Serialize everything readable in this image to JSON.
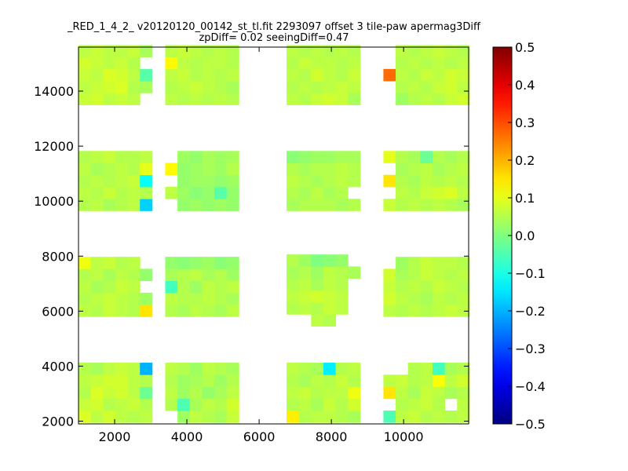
{
  "chart_data": {
    "type": "heatmap",
    "title_line1": "_RED_1_4_2_ v20120120_00142_st_tl.fit 2293097 offset 3 tile-paw apermag3Diff",
    "title_line2": "zpDiff= 0.02 seeingDiff=0.47",
    "xlim": [
      1000,
      11800
    ],
    "ylim": [
      1900,
      15600
    ],
    "x_ticks": [
      2000,
      4000,
      6000,
      8000,
      10000
    ],
    "x_tick_labels": [
      "2000",
      "4000",
      "6000",
      "8000",
      "10000"
    ],
    "y_ticks": [
      2000,
      4000,
      6000,
      8000,
      10000,
      12000,
      14000
    ],
    "y_tick_labels": [
      "2000",
      "4000",
      "6000",
      "8000",
      "10000",
      "12000",
      "14000"
    ],
    "colorbar": {
      "colormap": "jet",
      "vmin": -0.5,
      "vmax": 0.5,
      "ticks": [
        0.5,
        0.4,
        0.3,
        0.2,
        0.1,
        0.0,
        -0.1,
        -0.2,
        -0.3,
        -0.4,
        -0.5
      ],
      "tick_labels": [
        "0.5",
        "0.4",
        "0.3",
        "0.2",
        "0.1",
        "0.0",
        "−0.1",
        "−0.2",
        "−0.3",
        "−0.4",
        "−0.5"
      ]
    },
    "cell_size": [
      340,
      435
    ],
    "tiles": [
      {
        "x0": 1000,
        "y0": 1950,
        "cols": 6,
        "rows": 5,
        "values": [
          [
            0.09,
            0.06,
            0.08,
            0.06,
            0.05,
            0.06
          ],
          [
            0.07,
            0.08,
            0.05,
            0.06,
            0.07,
            0.05
          ],
          [
            0.05,
            0.09,
            0.07,
            0.08,
            0.06,
            -0.02
          ],
          [
            0.06,
            0.07,
            0.08,
            0.08,
            0.06,
            0.05
          ],
          [
            0.05,
            0.04,
            0.06,
            0.07,
            0.06,
            -0.2
          ]
        ]
      },
      {
        "x0": 3400,
        "y0": 1950,
        "cols": 6,
        "rows": 5,
        "values": [
          [
            null,
            0.03,
            0.06,
            0.05,
            0.04,
            0.07
          ],
          [
            0.05,
            -0.05,
            0.04,
            0.06,
            0.05,
            0.08
          ],
          [
            0.06,
            0.03,
            0.05,
            0.02,
            0.04,
            0.06
          ],
          [
            0.05,
            0.03,
            0.04,
            0.05,
            0.03,
            0.05
          ],
          [
            0.06,
            0.05,
            0.03,
            0.06,
            0.05,
            0.04
          ]
        ]
      },
      {
        "x0": 6760,
        "y0": 1950,
        "cols": 6,
        "rows": 5,
        "values": [
          [
            0.14,
            0.05,
            0.06,
            0.06,
            0.05,
            0.04
          ],
          [
            0.05,
            0.06,
            0.04,
            0.07,
            0.05,
            0.08
          ],
          [
            0.06,
            0.07,
            0.05,
            0.06,
            0.06,
            0.11
          ],
          [
            0.05,
            0.04,
            0.06,
            0.05,
            0.07,
            0.05
          ],
          [
            0.06,
            0.05,
            0.04,
            -0.14,
            0.05,
            0.06
          ]
        ]
      },
      {
        "x0": 9440,
        "y0": 1950,
        "cols": 7,
        "rows": 5,
        "values": [
          [
            -0.05,
            0.06,
            0.07,
            0.05,
            0.06,
            0.05,
            0.06
          ],
          [
            null,
            0.05,
            0.06,
            0.07,
            0.05,
            null,
            0.06
          ],
          [
            0.15,
            0.06,
            0.04,
            0.07,
            0.06,
            0.04,
            0.05
          ],
          [
            0.06,
            0.07,
            0.05,
            0.06,
            0.12,
            0.06,
            0.08
          ],
          [
            null,
            null,
            0.05,
            0.06,
            -0.06,
            0.04,
            0.05
          ]
        ]
      },
      {
        "x0": 1000,
        "y0": 5800,
        "cols": 6,
        "rows": 5,
        "values": [
          [
            0.06,
            0.05,
            0.07,
            0.06,
            0.05,
            0.15
          ],
          [
            0.05,
            0.06,
            0.07,
            0.06,
            0.05,
            0.03
          ],
          [
            0.06,
            0.04,
            0.05,
            0.07,
            0.06,
            null
          ],
          [
            0.05,
            0.06,
            0.04,
            0.06,
            0.05,
            0.02
          ],
          [
            0.11,
            0.06,
            0.07,
            0.05,
            0.06,
            null
          ]
        ]
      },
      {
        "x0": 3400,
        "y0": 5800,
        "cols": 6,
        "rows": 5,
        "values": [
          [
            0.05,
            0.04,
            0.06,
            0.05,
            0.04,
            0.06
          ],
          [
            0.06,
            0.05,
            0.05,
            0.06,
            0.05,
            0.04
          ],
          [
            -0.06,
            0.05,
            0.03,
            0.06,
            0.05,
            0.06
          ],
          [
            0.04,
            0.05,
            0.06,
            0.04,
            0.05,
            0.03
          ],
          [
            0.02,
            0.01,
            0.02,
            0.03,
            0.01,
            0.02
          ]
        ]
      },
      {
        "x0": 6760,
        "y0": 5450,
        "cols": 6,
        "rows": 6,
        "values": [
          [
            null,
            null,
            0.06,
            0.05,
            null,
            null
          ],
          [
            0.05,
            0.06,
            0.05,
            0.07,
            0.06,
            null
          ],
          [
            0.06,
            0.07,
            0.08,
            0.07,
            0.06,
            null
          ],
          [
            0.05,
            0.06,
            0.04,
            0.06,
            0.05,
            null
          ],
          [
            0.04,
            0.05,
            0.03,
            0.06,
            0.05,
            0.04
          ],
          [
            0.05,
            0.03,
            0.0,
            0.01,
            0.02,
            null
          ]
        ]
      },
      {
        "x0": 9440,
        "y0": 5800,
        "cols": 7,
        "rows": 5,
        "values": [
          [
            0.06,
            0.05,
            0.06,
            0.05,
            0.06,
            0.07,
            0.06
          ],
          [
            0.08,
            0.06,
            0.05,
            0.04,
            0.06,
            0.05,
            0.06
          ],
          [
            0.07,
            0.05,
            0.06,
            0.05,
            0.07,
            0.06,
            0.05
          ],
          [
            0.08,
            0.04,
            0.05,
            0.07,
            0.06,
            0.05,
            0.06
          ],
          [
            null,
            0.03,
            0.05,
            0.07,
            0.06,
            0.06,
            0.05
          ]
        ]
      },
      {
        "x0": 1000,
        "y0": 9650,
        "cols": 6,
        "rows": 5,
        "values": [
          [
            0.05,
            0.06,
            0.04,
            0.05,
            0.06,
            -0.17
          ],
          [
            0.06,
            0.05,
            0.07,
            0.05,
            0.06,
            0.05
          ],
          [
            0.05,
            0.06,
            0.05,
            0.06,
            0.07,
            -0.12
          ],
          [
            0.06,
            0.04,
            0.05,
            0.06,
            0.05,
            0.1
          ],
          [
            0.05,
            0.06,
            0.07,
            0.05,
            0.05,
            0.06
          ]
        ]
      },
      {
        "x0": 3400,
        "y0": 9650,
        "cols": 6,
        "rows": 5,
        "values": [
          [
            null,
            0.02,
            0.03,
            0.02,
            0.03,
            0.02
          ],
          [
            0.06,
            0.03,
            0.01,
            0.02,
            -0.04,
            0.02
          ],
          [
            null,
            0.02,
            0.03,
            0.03,
            0.02,
            0.03
          ],
          [
            0.13,
            0.02,
            0.03,
            0.04,
            0.03,
            0.05
          ],
          [
            null,
            0.03,
            0.02,
            0.04,
            0.03,
            0.04
          ]
        ]
      },
      {
        "x0": 6760,
        "y0": 9650,
        "cols": 6,
        "rows": 5,
        "values": [
          [
            0.04,
            0.05,
            0.05,
            0.05,
            0.04,
            0.05
          ],
          [
            0.05,
            0.04,
            0.06,
            0.04,
            0.05,
            null
          ],
          [
            0.06,
            0.05,
            0.04,
            0.05,
            0.06,
            0.05
          ],
          [
            0.05,
            0.04,
            0.05,
            0.05,
            0.06,
            0.05
          ],
          [
            0.01,
            0.02,
            0.03,
            0.03,
            0.04,
            0.04
          ]
        ]
      },
      {
        "x0": 9440,
        "y0": 9650,
        "cols": 7,
        "rows": 5,
        "values": [
          [
            0.07,
            0.05,
            0.06,
            0.05,
            0.06,
            0.05,
            0.04
          ],
          [
            null,
            0.06,
            0.05,
            0.07,
            0.08,
            0.09,
            0.06
          ],
          [
            0.15,
            0.05,
            0.04,
            0.06,
            0.05,
            0.06,
            0.05
          ],
          [
            null,
            0.04,
            0.05,
            0.06,
            0.04,
            0.05,
            0.06
          ],
          [
            0.1,
            0.05,
            0.04,
            -0.02,
            0.05,
            0.04,
            0.05
          ]
        ]
      },
      {
        "x0": 1000,
        "y0": 13500,
        "cols": 6,
        "rows": 5,
        "values": [
          [
            0.07,
            0.08,
            0.06,
            0.07,
            0.06,
            null
          ],
          [
            0.06,
            0.07,
            0.08,
            0.09,
            0.05,
            0.04
          ],
          [
            0.07,
            0.06,
            0.09,
            0.08,
            0.06,
            -0.04
          ],
          [
            0.08,
            0.07,
            0.06,
            0.07,
            0.05,
            null
          ],
          [
            0.06,
            0.07,
            0.06,
            0.06,
            0.07,
            0.04
          ]
        ]
      },
      {
        "x0": 3400,
        "y0": 13500,
        "cols": 6,
        "rows": 5,
        "values": [
          [
            0.06,
            0.05,
            0.06,
            0.05,
            0.06,
            0.05
          ],
          [
            0.05,
            0.06,
            0.07,
            0.06,
            0.05,
            0.04
          ],
          [
            0.06,
            0.07,
            0.05,
            0.06,
            0.05,
            0.06
          ],
          [
            0.13,
            0.06,
            0.05,
            0.06,
            0.06,
            0.05
          ],
          [
            0.06,
            0.07,
            0.06,
            0.05,
            0.06,
            0.05
          ]
        ]
      },
      {
        "x0": 6760,
        "y0": 13500,
        "cols": 6,
        "rows": 5,
        "values": [
          [
            0.06,
            0.05,
            0.07,
            0.08,
            0.07,
            0.04
          ],
          [
            0.05,
            0.06,
            0.05,
            0.06,
            0.07,
            0.06
          ],
          [
            0.06,
            0.05,
            0.08,
            0.06,
            0.05,
            0.07
          ],
          [
            0.05,
            0.07,
            0.06,
            0.06,
            0.05,
            0.06
          ],
          [
            0.06,
            0.05,
            0.06,
            0.05,
            0.06,
            0.05
          ]
        ]
      },
      {
        "x0": 9440,
        "y0": 13500,
        "cols": 7,
        "rows": 5,
        "values": [
          [
            null,
            0.03,
            0.05,
            0.06,
            0.05,
            0.07,
            0.08
          ],
          [
            null,
            0.05,
            0.06,
            0.05,
            0.07,
            0.08,
            0.06
          ],
          [
            0.27,
            0.06,
            0.05,
            0.07,
            0.06,
            0.08,
            0.07
          ],
          [
            null,
            0.05,
            0.06,
            0.05,
            0.06,
            0.05,
            0.06
          ],
          [
            null,
            0.06,
            0.05,
            0.06,
            0.07,
            0.06,
            0.05
          ]
        ]
      }
    ]
  }
}
